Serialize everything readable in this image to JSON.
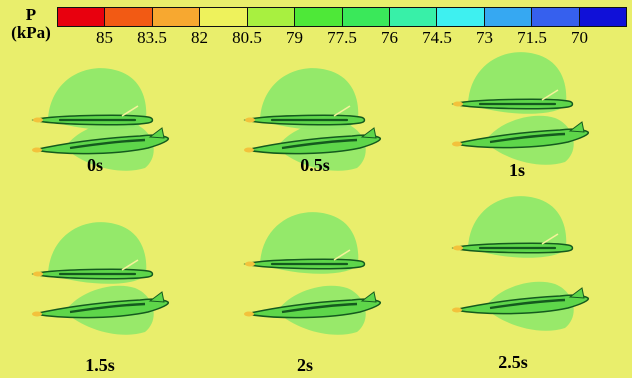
{
  "colorbar": {
    "title": "P",
    "unit": "(kPa)",
    "tick_labels": [
      "85",
      "83.5",
      "82",
      "80.5",
      "79",
      "77.5",
      "76",
      "74.5",
      "73",
      "71.5",
      "70"
    ],
    "colors": [
      "#e8000e",
      "#f25a14",
      "#f7a830",
      "#eef25c",
      "#a8f040",
      "#4ee838",
      "#3ae85a",
      "#38f0a8",
      "#3ef0f0",
      "#36a8f2",
      "#3660ee",
      "#1010d8"
    ]
  },
  "colors": {
    "background": "#e9ee6c",
    "low_pressure_region": "#8fe86a",
    "hull_green": "#5ed64a",
    "hull_dark": "#145a1e"
  },
  "panels": [
    {
      "time_label": "0s"
    },
    {
      "time_label": "0.5s"
    },
    {
      "time_label": "1s"
    },
    {
      "time_label": "1.5s"
    },
    {
      "time_label": "2s"
    },
    {
      "time_label": "2.5s"
    }
  ]
}
